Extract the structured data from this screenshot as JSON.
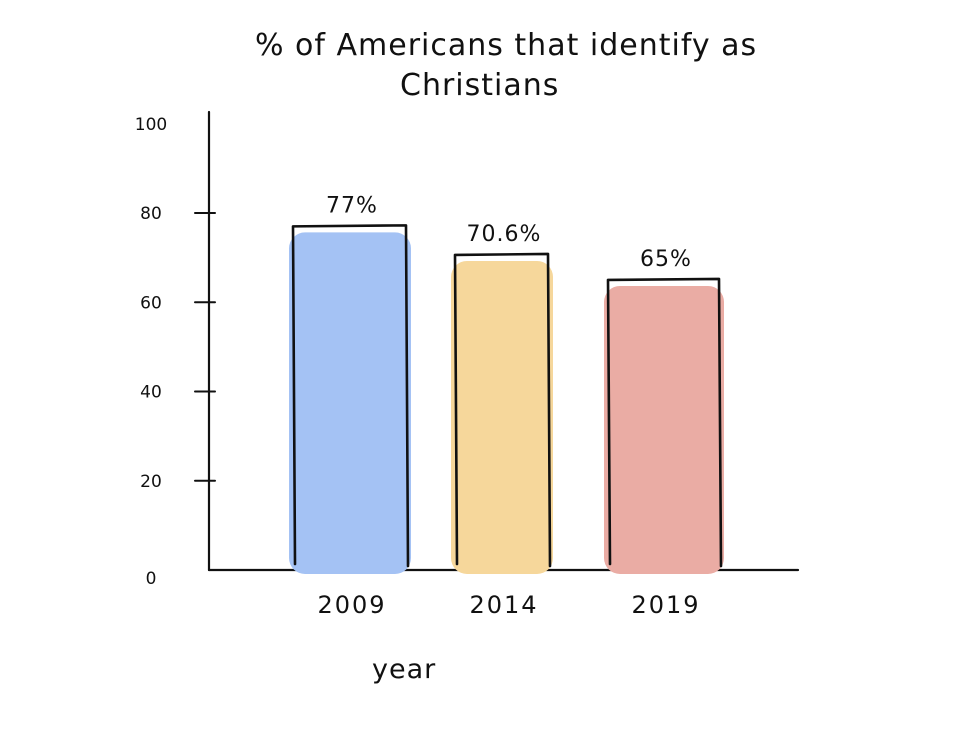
{
  "chart_data": {
    "type": "bar",
    "title_line1": "% of Americans that identify as",
    "title_line2": "Christians",
    "xlabel": "year",
    "ylabel": "",
    "categories": [
      "2009",
      "2014",
      "2019"
    ],
    "values": [
      77,
      70.6,
      65
    ],
    "data_labels": [
      "77%",
      "70.6%",
      "65%"
    ],
    "y_ticks": [
      0,
      20,
      40,
      60,
      80,
      100
    ],
    "y_tick_labels": [
      "0",
      "20",
      "40",
      "60",
      "80",
      "100"
    ],
    "ylim": [
      0,
      100
    ],
    "grid": false,
    "colors": [
      "#a4c2f4",
      "#f6d79b",
      "#eaaca4"
    ],
    "outline_color": "#111111"
  }
}
